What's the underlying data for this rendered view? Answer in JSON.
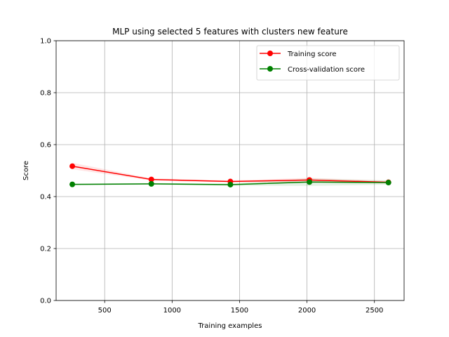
{
  "chart_data": {
    "type": "line",
    "title": "MLP using selected 5 features with clusters new feature",
    "xlabel": "Training examples",
    "ylabel": "Score",
    "xlim": [
      140,
      2720
    ],
    "ylim": [
      0.0,
      1.0
    ],
    "xticks": [
      500,
      1000,
      1500,
      2000,
      2500
    ],
    "yticks": [
      0.0,
      0.2,
      0.4,
      0.6,
      0.8,
      1.0
    ],
    "grid": true,
    "legend_position": "top-right",
    "x": [
      260,
      846,
      1432,
      2018,
      2604
    ],
    "series": [
      {
        "name": "Training score",
        "color": "#ff0000",
        "values": [
          0.517,
          0.466,
          0.458,
          0.464,
          0.455
        ],
        "band_lower": [
          0.505,
          0.462,
          0.454,
          0.454,
          0.45
        ],
        "band_upper": [
          0.53,
          0.47,
          0.462,
          0.472,
          0.461
        ]
      },
      {
        "name": "Cross-validation score",
        "color": "#008000",
        "values": [
          0.447,
          0.449,
          0.446,
          0.456,
          0.454
        ],
        "band_lower": [
          0.444,
          0.446,
          0.442,
          0.441,
          0.446
        ],
        "band_upper": [
          0.45,
          0.452,
          0.45,
          0.47,
          0.462
        ]
      }
    ]
  }
}
